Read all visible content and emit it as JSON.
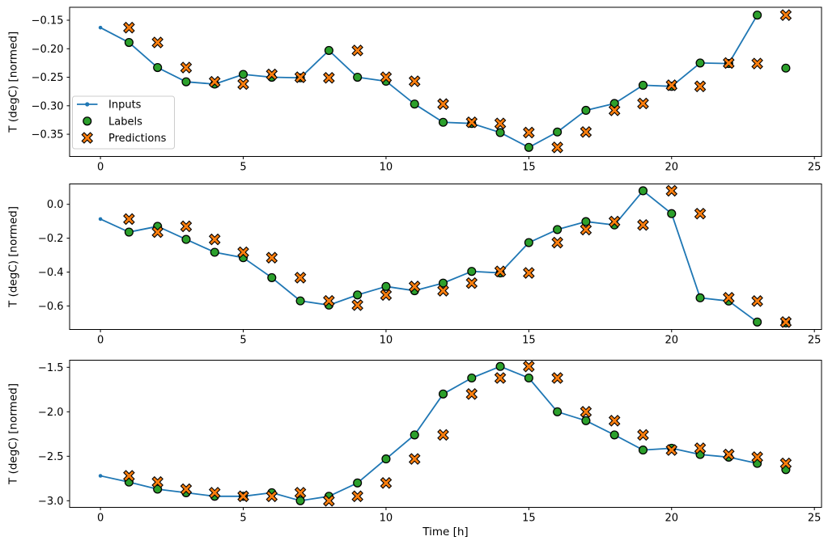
{
  "figure": {
    "background": "#ffffff",
    "xlabel": "Time [h]",
    "ylabel": "T (degC) [normed]",
    "legend": {
      "items": [
        {
          "label": "Inputs",
          "marker": "line-dot",
          "color": "#1f77b4"
        },
        {
          "label": "Labels",
          "marker": "circle",
          "color": "#2ca02c",
          "edge": "#000000"
        },
        {
          "label": "Predictions",
          "marker": "x-filled",
          "color": "#ff7f0e",
          "edge": "#000000"
        }
      ]
    },
    "colors": {
      "inputs_line": "#1f77b4",
      "labels_marker": "#2ca02c",
      "predictions_marker": "#ff7f0e",
      "marker_edge": "#000000",
      "spine": "#000000",
      "legend_border": "#cccccc"
    }
  },
  "chart_data": [
    {
      "type": "line",
      "title": "",
      "xlabel": "",
      "ylabel": "T (degC) [normed]",
      "xlim": [
        -1.08,
        25.25
      ],
      "ylim": [
        -0.3889,
        -0.1273
      ],
      "xticks": [
        0,
        5,
        10,
        15,
        20,
        25
      ],
      "xtick_labels": [
        "0",
        "5",
        "10",
        "15",
        "20",
        "25"
      ],
      "yticks": [
        -0.15,
        -0.2,
        -0.25,
        -0.3,
        -0.35
      ],
      "ytick_labels": [
        "−0.15",
        "−0.20",
        "−0.25",
        "−0.30",
        "−0.35"
      ],
      "grid": false,
      "legend_position": "center-left",
      "series": [
        {
          "name": "Inputs",
          "style": "line-dot",
          "color": "#1f77b4",
          "x": [
            0,
            1,
            2,
            3,
            4,
            5,
            6,
            7,
            8,
            9,
            10,
            11,
            12,
            13,
            14,
            15,
            16,
            17,
            18,
            19,
            20,
            21,
            22,
            23
          ],
          "y": [
            -0.163,
            -0.189,
            -0.233,
            -0.258,
            -0.262,
            -0.245,
            -0.25,
            -0.251,
            -0.203,
            -0.25,
            -0.257,
            -0.297,
            -0.329,
            -0.331,
            -0.347,
            -0.373,
            -0.346,
            -0.308,
            -0.296,
            -0.264,
            -0.266,
            -0.225,
            -0.226,
            -0.141
          ]
        },
        {
          "name": "Labels",
          "style": "circle",
          "color": "#2ca02c",
          "edge": "#000000",
          "x": [
            1,
            2,
            3,
            4,
            5,
            6,
            7,
            8,
            9,
            10,
            11,
            12,
            13,
            14,
            15,
            16,
            17,
            18,
            19,
            20,
            21,
            22,
            23,
            24
          ],
          "y": [
            -0.189,
            -0.233,
            -0.258,
            -0.262,
            -0.245,
            -0.25,
            -0.251,
            -0.203,
            -0.25,
            -0.257,
            -0.297,
            -0.329,
            -0.331,
            -0.347,
            -0.373,
            -0.346,
            -0.308,
            -0.296,
            -0.264,
            -0.266,
            -0.225,
            -0.226,
            -0.141,
            -0.234
          ]
        },
        {
          "name": "Predictions",
          "style": "x-filled",
          "color": "#ff7f0e",
          "edge": "#000000",
          "x": [
            1,
            2,
            3,
            4,
            5,
            6,
            7,
            8,
            9,
            10,
            11,
            12,
            13,
            14,
            15,
            16,
            17,
            18,
            19,
            20,
            21,
            22,
            23,
            24
          ],
          "y": [
            -0.163,
            -0.189,
            -0.233,
            -0.258,
            -0.262,
            -0.245,
            -0.25,
            -0.251,
            -0.203,
            -0.25,
            -0.257,
            -0.297,
            -0.329,
            -0.331,
            -0.347,
            -0.373,
            -0.346,
            -0.308,
            -0.296,
            -0.264,
            -0.266,
            -0.225,
            -0.226,
            -0.141
          ]
        }
      ]
    },
    {
      "type": "line",
      "title": "",
      "xlabel": "",
      "ylabel": "T (degC) [normed]",
      "xlim": [
        -1.08,
        25.25
      ],
      "ylim": [
        -0.7389,
        0.1203
      ],
      "xticks": [
        0,
        5,
        10,
        15,
        20,
        25
      ],
      "xtick_labels": [
        "0",
        "5",
        "10",
        "15",
        "20",
        "25"
      ],
      "yticks": [
        0.0,
        -0.2,
        -0.4,
        -0.6
      ],
      "ytick_labels": [
        "0.0",
        "−0.2",
        "−0.4",
        "−0.6"
      ],
      "grid": false,
      "legend_position": "none",
      "series": [
        {
          "name": "Inputs",
          "style": "line-dot",
          "color": "#1f77b4",
          "x": [
            0,
            1,
            2,
            3,
            4,
            5,
            6,
            7,
            8,
            9,
            10,
            11,
            12,
            13,
            14,
            15,
            16,
            17,
            18,
            19,
            20,
            21,
            22,
            23
          ],
          "y": [
            -0.087,
            -0.164,
            -0.13,
            -0.207,
            -0.283,
            -0.315,
            -0.433,
            -0.57,
            -0.595,
            -0.535,
            -0.485,
            -0.51,
            -0.465,
            -0.396,
            -0.405,
            -0.226,
            -0.149,
            -0.102,
            -0.122,
            0.08,
            -0.055,
            -0.552,
            -0.571,
            -0.695
          ]
        },
        {
          "name": "Labels",
          "style": "circle",
          "color": "#2ca02c",
          "edge": "#000000",
          "x": [
            1,
            2,
            3,
            4,
            5,
            6,
            7,
            8,
            9,
            10,
            11,
            12,
            13,
            14,
            15,
            16,
            17,
            18,
            19,
            20,
            21,
            22,
            23,
            24
          ],
          "y": [
            -0.164,
            -0.13,
            -0.207,
            -0.283,
            -0.315,
            -0.433,
            -0.57,
            -0.595,
            -0.535,
            -0.485,
            -0.51,
            -0.465,
            -0.396,
            -0.405,
            -0.226,
            -0.149,
            -0.102,
            -0.122,
            0.08,
            -0.055,
            -0.552,
            -0.571,
            -0.695,
            -0.7
          ]
        },
        {
          "name": "Predictions",
          "style": "x-filled",
          "color": "#ff7f0e",
          "edge": "#000000",
          "x": [
            1,
            2,
            3,
            4,
            5,
            6,
            7,
            8,
            9,
            10,
            11,
            12,
            13,
            14,
            15,
            16,
            17,
            18,
            19,
            20,
            21,
            22,
            23,
            24
          ],
          "y": [
            -0.087,
            -0.164,
            -0.13,
            -0.207,
            -0.283,
            -0.315,
            -0.433,
            -0.57,
            -0.595,
            -0.535,
            -0.485,
            -0.51,
            -0.465,
            -0.396,
            -0.405,
            -0.226,
            -0.149,
            -0.102,
            -0.122,
            0.08,
            -0.055,
            -0.552,
            -0.571,
            -0.695
          ]
        }
      ]
    },
    {
      "type": "line",
      "title": "",
      "xlabel": "Time [h]",
      "ylabel": "T (degC) [normed]",
      "xlim": [
        -1.08,
        25.25
      ],
      "ylim": [
        -3.0745,
        -1.42
      ],
      "xticks": [
        0,
        5,
        10,
        15,
        20,
        25
      ],
      "xtick_labels": [
        "0",
        "5",
        "10",
        "15",
        "20",
        "25"
      ],
      "yticks": [
        -1.5,
        -2.0,
        -2.5,
        -3.0
      ],
      "ytick_labels": [
        "−1.5",
        "−2.0",
        "−2.5",
        "−3.0"
      ],
      "grid": false,
      "legend_position": "none",
      "series": [
        {
          "name": "Inputs",
          "style": "line-dot",
          "color": "#1f77b4",
          "x": [
            0,
            1,
            2,
            3,
            4,
            5,
            6,
            7,
            8,
            9,
            10,
            11,
            12,
            13,
            14,
            15,
            16,
            17,
            18,
            19,
            20,
            21,
            22,
            23
          ],
          "y": [
            -2.72,
            -2.79,
            -2.87,
            -2.91,
            -2.95,
            -2.95,
            -2.91,
            -3.0,
            -2.95,
            -2.8,
            -2.53,
            -2.26,
            -1.8,
            -1.62,
            -1.49,
            -1.62,
            -2.0,
            -2.1,
            -2.26,
            -2.43,
            -2.41,
            -2.48,
            -2.51,
            -2.58
          ]
        },
        {
          "name": "Labels",
          "style": "circle",
          "color": "#2ca02c",
          "edge": "#000000",
          "x": [
            1,
            2,
            3,
            4,
            5,
            6,
            7,
            8,
            9,
            10,
            11,
            12,
            13,
            14,
            15,
            16,
            17,
            18,
            19,
            20,
            21,
            22,
            23,
            24
          ],
          "y": [
            -2.79,
            -2.87,
            -2.91,
            -2.95,
            -2.95,
            -2.91,
            -3.0,
            -2.95,
            -2.8,
            -2.53,
            -2.26,
            -1.8,
            -1.62,
            -1.49,
            -1.62,
            -2.0,
            -2.1,
            -2.26,
            -2.43,
            -2.41,
            -2.48,
            -2.51,
            -2.58,
            -2.65
          ]
        },
        {
          "name": "Predictions",
          "style": "x-filled",
          "color": "#ff7f0e",
          "edge": "#000000",
          "x": [
            1,
            2,
            3,
            4,
            5,
            6,
            7,
            8,
            9,
            10,
            11,
            12,
            13,
            14,
            15,
            16,
            17,
            18,
            19,
            20,
            21,
            22,
            23,
            24
          ],
          "y": [
            -2.72,
            -2.79,
            -2.87,
            -2.91,
            -2.95,
            -2.95,
            -2.91,
            -3.0,
            -2.95,
            -2.8,
            -2.53,
            -2.26,
            -1.8,
            -1.62,
            -1.49,
            -1.62,
            -2.0,
            -2.1,
            -2.26,
            -2.43,
            -2.41,
            -2.48,
            -2.51,
            -2.58
          ]
        }
      ]
    }
  ]
}
